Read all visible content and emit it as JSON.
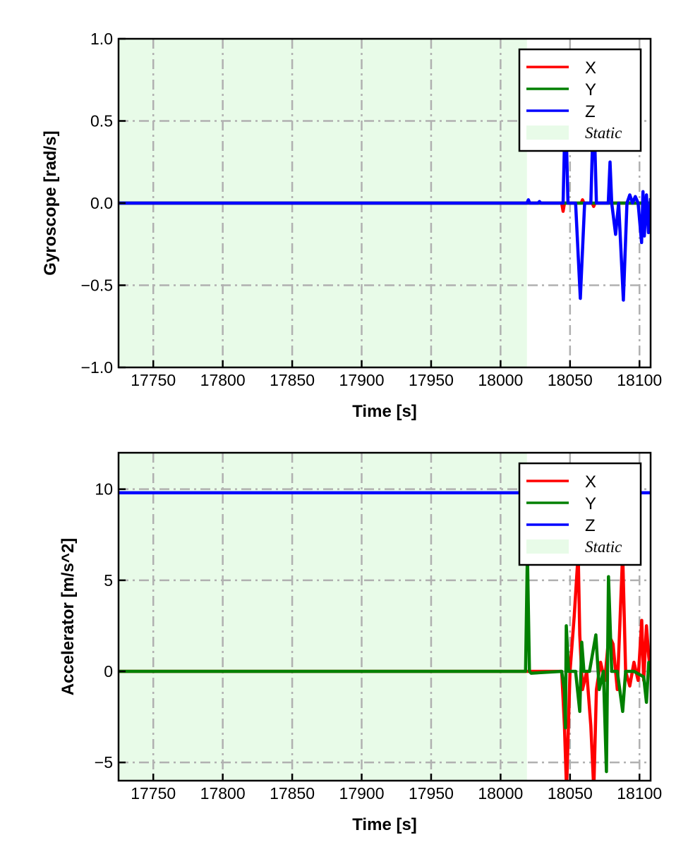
{
  "chart_data": [
    {
      "type": "line",
      "xlabel": "Time [s]",
      "ylabel": "Gyroscope [rad/s]",
      "xlim": [
        17725,
        18108
      ],
      "ylim": [
        -1.0,
        1.0
      ],
      "xticks": [
        17750,
        17800,
        17850,
        17900,
        17950,
        18000,
        18050,
        18100
      ],
      "xtick_labels": [
        "17750",
        "17800",
        "17850",
        "17900",
        "17950",
        "18000",
        "18050",
        "18100"
      ],
      "yticks": [
        1.0,
        0.5,
        0.0,
        -0.5,
        -1.0
      ],
      "ytick_labels": [
        "1.0",
        "0.5",
        "0.0",
        "−0.5",
        "−1.0"
      ],
      "grid": true,
      "legend_placement": "top-right",
      "static_region": {
        "name": "Static",
        "x": [
          17725,
          18019
        ],
        "color": "#e8fbe8"
      },
      "series": [
        {
          "name": "X",
          "color": "#ff0000",
          "x": [
            17725,
            18044,
            18045,
            18046,
            18058,
            18059,
            18060,
            18066,
            18067,
            18068,
            18108
          ],
          "y": [
            0,
            0,
            -0.05,
            0,
            0,
            0.02,
            0,
            0,
            -0.02,
            0,
            0
          ]
        },
        {
          "name": "Y",
          "color": "#008000",
          "x": [
            17725,
            18108
          ],
          "y": [
            0,
            0
          ]
        },
        {
          "name": "Z",
          "color": "#0000ff",
          "x": [
            17725,
            18019,
            18020,
            18021,
            18027,
            18028,
            18029,
            18045,
            18046.7,
            18048.5,
            18051,
            18054,
            18057.4,
            18060.5,
            18062,
            18065,
            18067,
            18069,
            18071,
            18077.5,
            18078.8,
            18080,
            18082.8,
            18085,
            18088.4,
            18091,
            18093,
            18095,
            18097,
            18099,
            18101.5,
            18102.5,
            18103.5,
            18105,
            18106.5,
            18108
          ],
          "y": [
            0,
            0,
            0.02,
            0,
            0,
            0.01,
            0,
            0,
            0.62,
            0,
            0,
            0,
            -0.58,
            0,
            0,
            0,
            0.62,
            0,
            0,
            0,
            0.25,
            0,
            -0.19,
            0,
            -0.59,
            0,
            0.05,
            0,
            0.04,
            0,
            -0.24,
            0.07,
            -0.2,
            0.05,
            -0.18,
            0.03
          ]
        }
      ]
    },
    {
      "type": "line",
      "xlabel": "Time [s]",
      "ylabel": "Accelerator [m/s^2]",
      "xlim": [
        17725,
        18108
      ],
      "ylim": [
        -6,
        12
      ],
      "xticks": [
        17750,
        17800,
        17850,
        17900,
        17950,
        18000,
        18050,
        18100
      ],
      "xtick_labels": [
        "17750",
        "17800",
        "17850",
        "17900",
        "17950",
        "18000",
        "18050",
        "18100"
      ],
      "yticks": [
        10,
        5,
        0,
        -5
      ],
      "ytick_labels": [
        "10",
        "5",
        "0",
        "−5"
      ],
      "grid": true,
      "legend_placement": "top-right",
      "static_region": {
        "name": "Static",
        "x": [
          17725,
          18019
        ],
        "color": "#e8fbe8"
      },
      "series": [
        {
          "name": "X",
          "color": "#ff0000",
          "x": [
            17725,
            18044,
            18046,
            18047.5,
            18050,
            18053,
            18055.9,
            18057,
            18059,
            18062,
            18065,
            18067.1,
            18069,
            18072,
            18075,
            18078,
            18081,
            18084,
            18087.9,
            18090,
            18093,
            18096,
            18099,
            18101.6,
            18103,
            18105,
            18106.7,
            18108
          ],
          "y": [
            0,
            0,
            -3,
            -6.5,
            0,
            3,
            6.5,
            2,
            -1,
            0,
            -3,
            -6.5,
            -1,
            0.5,
            -0.5,
            2,
            1.5,
            -1,
            6.5,
            0,
            -0.8,
            0.5,
            -0.5,
            2.8,
            -0.5,
            2.5,
            0.8,
            0
          ]
        },
        {
          "name": "Y",
          "color": "#008000",
          "x": [
            17725,
            18018,
            18019.3,
            18020.8,
            18022,
            18044,
            18046,
            18046.7,
            18047.3,
            18049,
            18054,
            18057,
            18058.4,
            18060,
            18064,
            18068.6,
            18071,
            18074,
            18076.2,
            18077.7,
            18080,
            18084,
            18087.9,
            18090,
            18096,
            18103,
            18105,
            18106.7,
            18108
          ],
          "y": [
            0,
            0,
            6.5,
            0,
            -0.1,
            0,
            -1,
            -3.1,
            2.5,
            0,
            0,
            -2.2,
            1.6,
            0,
            0,
            2.0,
            -1,
            0,
            -5.5,
            5.2,
            0,
            0,
            -2.2,
            0,
            0,
            -0.3,
            -1.7,
            0.5,
            0
          ]
        },
        {
          "name": "Z",
          "color": "#0000ff",
          "x": [
            17725,
            18108
          ],
          "y": [
            9.8,
            9.8
          ]
        }
      ]
    }
  ]
}
